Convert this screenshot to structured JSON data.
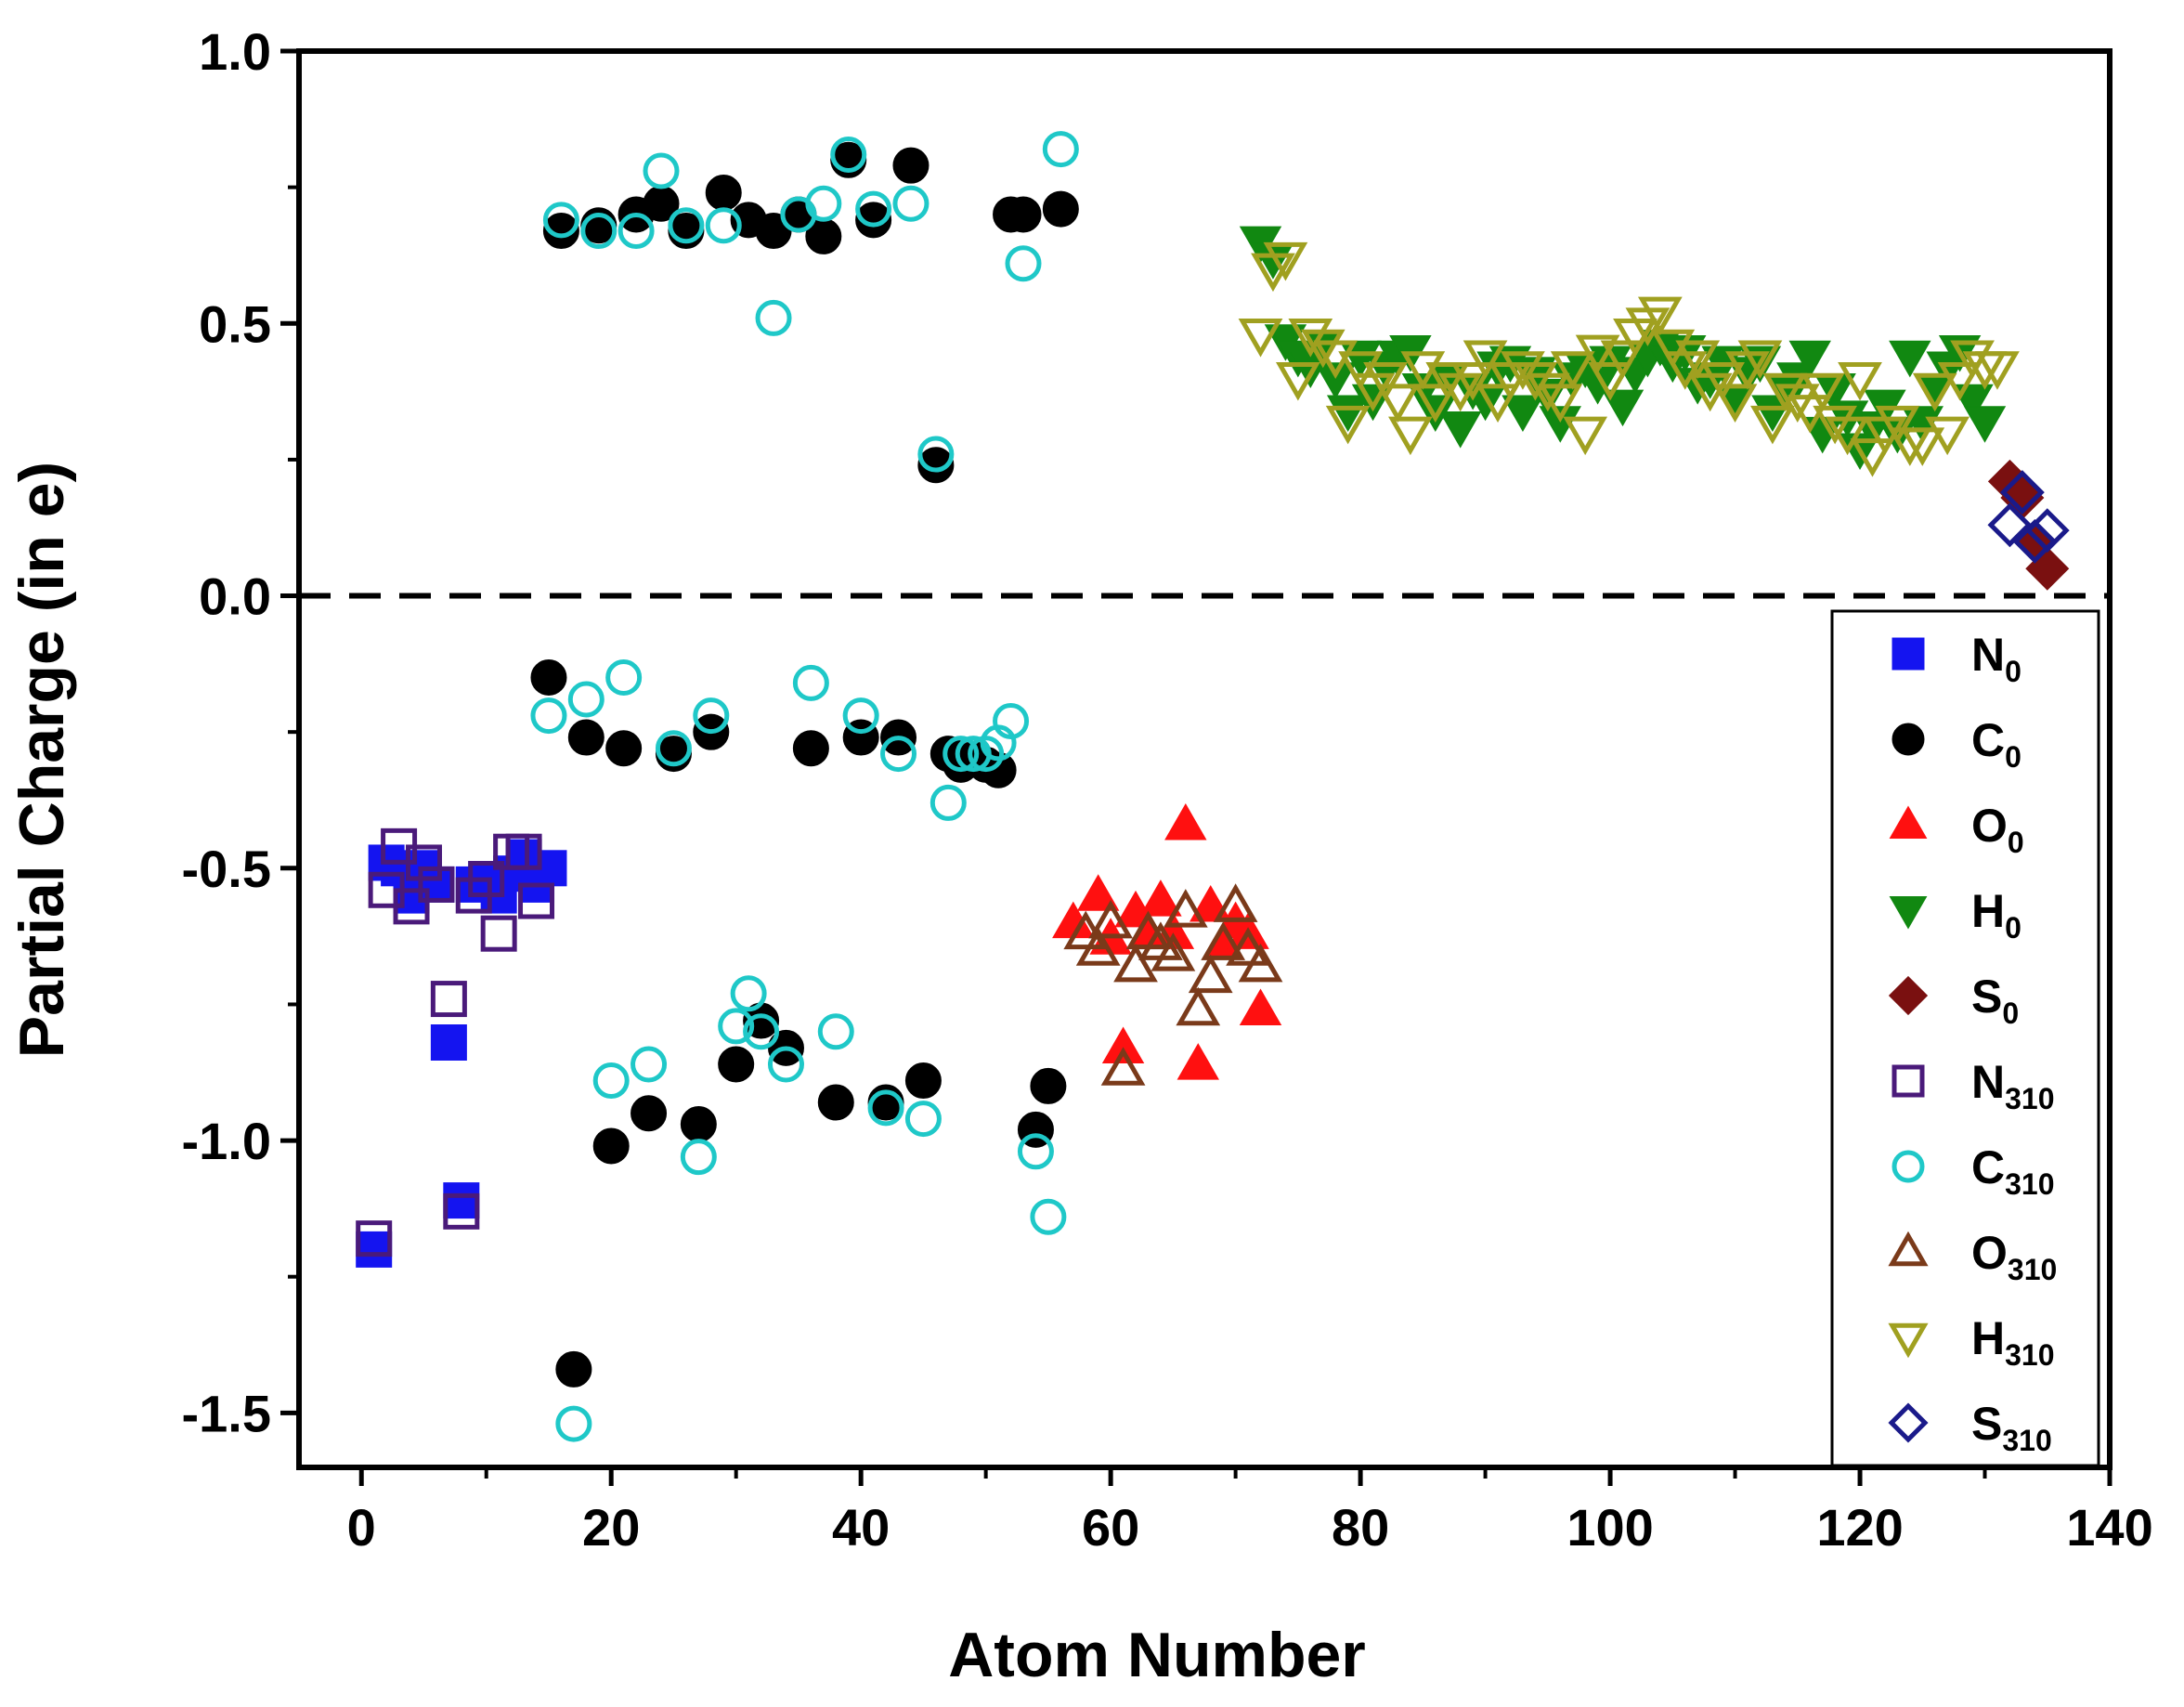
{
  "chart_data": {
    "type": "scatter",
    "xlabel": "Atom Number",
    "ylabel": "Partial Charge (in e)",
    "xlim": [
      -5,
      140
    ],
    "ylim": [
      -1.6,
      1.0
    ],
    "xticks": [
      0,
      20,
      40,
      60,
      80,
      100,
      120,
      140
    ],
    "yticks": [
      -1.5,
      -1.0,
      -0.5,
      0.0,
      0.5,
      1.0
    ],
    "ytick_labels": [
      "-1.5",
      "-1.0",
      "-0.5",
      "0.0",
      "0.5",
      "1.0"
    ],
    "reference_line": {
      "y": 0.0,
      "style": "dashed"
    },
    "legend_position": "bottom-right",
    "series": [
      {
        "name": "N0",
        "base": "N",
        "sub": "0",
        "marker": "square",
        "filled": true,
        "color": "#1414f0",
        "x": [
          1,
          2,
          3,
          4,
          5,
          6,
          7,
          8,
          9,
          10,
          11,
          12,
          13,
          14,
          15
        ],
        "y": [
          -1.2,
          -0.49,
          -0.5,
          -0.55,
          -0.5,
          -0.53,
          -0.82,
          -1.11,
          -0.53,
          -0.52,
          -0.55,
          -0.51,
          -0.48,
          -0.53,
          -0.5
        ]
      },
      {
        "name": "C0",
        "base": "C",
        "sub": "0",
        "marker": "circle",
        "filled": true,
        "color": "#000000",
        "x": [
          15,
          16,
          17,
          18,
          19,
          20,
          21,
          22,
          23,
          24,
          25,
          26,
          27,
          28,
          29,
          30,
          31,
          32,
          33,
          34,
          35,
          36,
          37,
          38,
          39,
          40,
          41,
          42,
          43,
          44,
          45,
          46,
          47,
          48,
          49,
          50,
          51,
          52,
          53,
          54,
          55,
          56
        ],
        "y": [
          -0.15,
          0.67,
          -1.42,
          -0.26,
          0.68,
          -1.01,
          -0.28,
          0.7,
          -0.95,
          0.72,
          -0.29,
          0.67,
          -0.97,
          -0.25,
          0.74,
          -0.86,
          0.69,
          -0.78,
          0.67,
          -0.83,
          0.7,
          -0.28,
          0.66,
          -0.93,
          0.8,
          -0.26,
          0.69,
          -0.93,
          -0.26,
          0.79,
          -0.89,
          0.24,
          -0.29,
          -0.31,
          -0.3,
          -0.31,
          -0.32,
          0.7,
          0.7,
          -0.98,
          -0.9,
          0.71
        ]
      },
      {
        "name": "O0",
        "base": "O",
        "sub": "0",
        "marker": "triangle-up",
        "filled": true,
        "color": "#ff1010",
        "x": [
          57,
          59,
          60,
          61,
          62,
          63,
          64,
          65,
          66,
          67,
          68,
          69,
          70,
          71,
          72
        ],
        "y": [
          -0.6,
          -0.55,
          -0.63,
          -0.83,
          -0.58,
          -0.62,
          -0.56,
          -0.62,
          -0.42,
          -0.86,
          -0.57,
          -0.64,
          -0.6,
          -0.62,
          -0.76
        ]
      },
      {
        "name": "H0",
        "base": "H",
        "sub": "0",
        "marker": "triangle-down",
        "filled": true,
        "color": "#118811",
        "x": [
          72,
          73,
          74,
          75,
          76,
          77,
          78,
          79,
          80,
          81,
          82,
          83,
          84,
          85,
          86,
          87,
          88,
          89,
          90,
          91,
          92,
          93,
          94,
          95,
          96,
          97,
          98,
          99,
          100,
          101,
          102,
          103,
          104,
          105,
          106,
          107,
          108,
          109,
          110,
          111,
          112,
          113,
          114,
          115,
          116,
          117,
          118,
          119,
          120,
          121,
          122,
          123,
          124,
          125,
          126,
          127,
          128,
          129,
          130
        ],
        "y": [
          0.65,
          0.62,
          0.47,
          0.44,
          0.42,
          0.46,
          0.4,
          0.34,
          0.44,
          0.36,
          0.42,
          0.44,
          0.45,
          0.38,
          0.34,
          0.4,
          0.31,
          0.38,
          0.36,
          0.42,
          0.43,
          0.34,
          0.41,
          0.37,
          0.32,
          0.4,
          0.42,
          0.39,
          0.43,
          0.35,
          0.41,
          0.44,
          0.46,
          0.43,
          0.45,
          0.39,
          0.4,
          0.43,
          0.36,
          0.41,
          0.43,
          0.34,
          0.38,
          0.4,
          0.44,
          0.3,
          0.38,
          0.33,
          0.27,
          0.31,
          0.35,
          0.3,
          0.44,
          0.32,
          0.38,
          0.42,
          0.45,
          0.36,
          0.32
        ]
      },
      {
        "name": "S0",
        "base": "S",
        "sub": "0",
        "marker": "diamond",
        "filled": true,
        "color": "#7a1010",
        "x": [
          132,
          133,
          134,
          135
        ],
        "y": [
          0.21,
          0.18,
          0.1,
          0.05
        ]
      },
      {
        "name": "N310",
        "base": "N",
        "sub": "310",
        "marker": "square",
        "filled": false,
        "color": "#4a1a7a",
        "x": [
          1,
          2,
          3,
          4,
          5,
          6,
          7,
          8,
          9,
          10,
          11,
          12,
          13,
          14
        ],
        "y": [
          -1.18,
          -0.54,
          -0.46,
          -0.57,
          -0.49,
          -0.53,
          -0.74,
          -1.13,
          -0.55,
          -0.52,
          -0.62,
          -0.47,
          -0.47,
          -0.56
        ]
      },
      {
        "name": "C310",
        "base": "C",
        "sub": "310",
        "marker": "circle",
        "filled": false,
        "color": "#1fc8c8",
        "x": [
          15,
          16,
          17,
          18,
          19,
          20,
          21,
          22,
          23,
          24,
          25,
          26,
          27,
          28,
          29,
          30,
          31,
          32,
          33,
          34,
          35,
          36,
          37,
          38,
          39,
          40,
          41,
          42,
          43,
          44,
          45,
          46,
          47,
          48,
          49,
          50,
          51,
          52,
          53,
          54,
          55,
          56
        ],
        "y": [
          -0.22,
          0.69,
          -1.52,
          -0.19,
          0.67,
          -0.89,
          -0.15,
          0.67,
          -0.86,
          0.78,
          -0.28,
          0.68,
          -1.03,
          -0.22,
          0.68,
          -0.79,
          -0.73,
          -0.8,
          0.51,
          -0.86,
          0.7,
          -0.16,
          0.72,
          -0.8,
          0.81,
          -0.22,
          0.71,
          -0.94,
          -0.29,
          0.72,
          -0.96,
          0.26,
          -0.38,
          -0.29,
          -0.29,
          -0.29,
          -0.27,
          -0.23,
          0.61,
          -1.02,
          -1.14,
          0.82
        ]
      },
      {
        "name": "O310",
        "base": "O",
        "sub": "310",
        "marker": "triangle-up",
        "filled": false,
        "color": "#7a3a1a",
        "x": [
          58,
          59,
          60,
          61,
          62,
          63,
          64,
          65,
          66,
          67,
          68,
          69,
          70,
          71,
          72
        ],
        "y": [
          -0.62,
          -0.65,
          -0.6,
          -0.87,
          -0.68,
          -0.62,
          -0.64,
          -0.66,
          -0.58,
          -0.76,
          -0.7,
          -0.64,
          -0.57,
          -0.65,
          -0.68
        ]
      },
      {
        "name": "H310",
        "base": "H",
        "sub": "310",
        "marker": "triangle-down",
        "filled": false,
        "color": "#a0a020",
        "x": [
          72,
          73,
          74,
          75,
          76,
          77,
          78,
          79,
          80,
          81,
          82,
          83,
          84,
          85,
          86,
          87,
          88,
          89,
          90,
          91,
          92,
          93,
          94,
          95,
          96,
          97,
          98,
          99,
          100,
          101,
          102,
          103,
          104,
          105,
          106,
          107,
          108,
          109,
          110,
          111,
          112,
          113,
          114,
          115,
          116,
          117,
          118,
          119,
          120,
          121,
          122,
          123,
          124,
          125,
          126,
          127,
          128,
          129,
          130,
          131
        ],
        "y": [
          0.48,
          0.6,
          0.62,
          0.4,
          0.48,
          0.46,
          0.44,
          0.32,
          0.42,
          0.38,
          0.4,
          0.36,
          0.3,
          0.42,
          0.36,
          0.4,
          0.38,
          0.4,
          0.44,
          0.36,
          0.4,
          0.42,
          0.4,
          0.38,
          0.36,
          0.42,
          0.3,
          0.45,
          0.4,
          0.44,
          0.48,
          0.5,
          0.52,
          0.46,
          0.42,
          0.44,
          0.38,
          0.4,
          0.36,
          0.42,
          0.44,
          0.32,
          0.38,
          0.36,
          0.34,
          0.38,
          0.32,
          0.3,
          0.4,
          0.26,
          0.3,
          0.32,
          0.28,
          0.28,
          0.38,
          0.3,
          0.4,
          0.44,
          0.42,
          0.42
        ]
      },
      {
        "name": "S310",
        "base": "S",
        "sub": "310",
        "marker": "diamond",
        "filled": false,
        "color": "#1a1a8a",
        "x": [
          132,
          133,
          134,
          135
        ],
        "y": [
          0.13,
          0.19,
          0.1,
          0.12
        ]
      }
    ]
  }
}
